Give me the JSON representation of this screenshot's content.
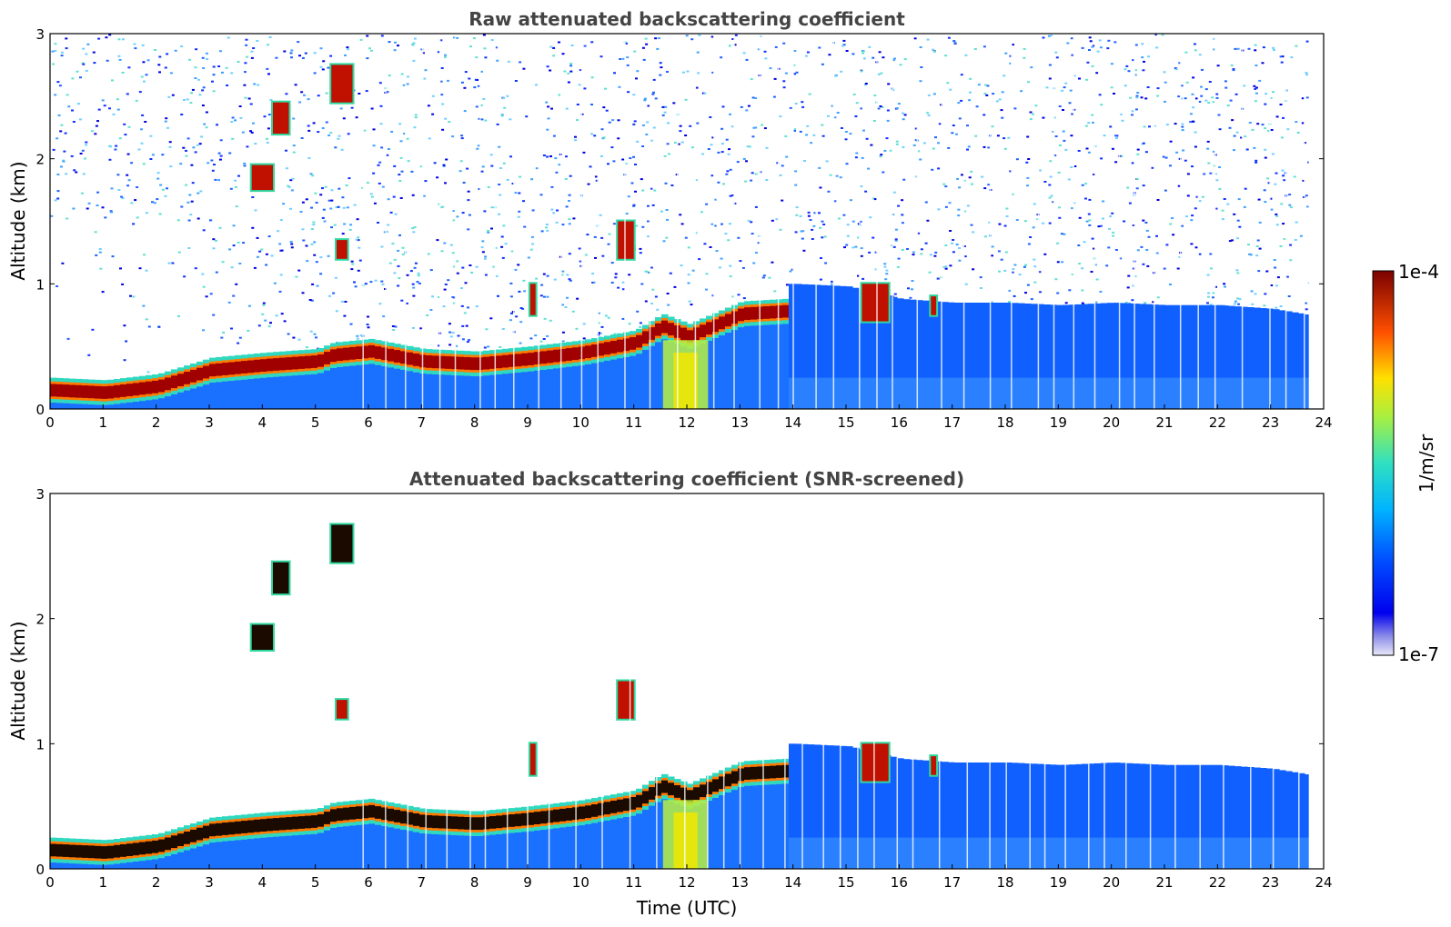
{
  "chart_data": [
    {
      "type": "heatmap",
      "title": "Raw attenuated backscattering coefficient",
      "xlabel": "",
      "ylabel": "Altitude (km)",
      "xlim": [
        0,
        24
      ],
      "ylim": [
        0,
        3
      ],
      "x_ticks": [
        "0",
        "1",
        "2",
        "3",
        "4",
        "5",
        "6",
        "7",
        "8",
        "9",
        "10",
        "11",
        "12",
        "13",
        "14",
        "15",
        "16",
        "17",
        "18",
        "19",
        "20",
        "21",
        "22",
        "23",
        "24"
      ],
      "y_ticks": [
        "0",
        "1",
        "2",
        "3"
      ],
      "screened": false
    },
    {
      "type": "heatmap",
      "title": "Attenuated backscattering coefficient (SNR-screened)",
      "xlabel": "Time (UTC)",
      "ylabel": "Altitude (km)",
      "xlim": [
        0,
        24
      ],
      "ylim": [
        0,
        3
      ],
      "x_ticks": [
        "0",
        "1",
        "2",
        "3",
        "4",
        "5",
        "6",
        "7",
        "8",
        "9",
        "10",
        "11",
        "12",
        "13",
        "14",
        "15",
        "16",
        "17",
        "18",
        "19",
        "20",
        "21",
        "22",
        "23",
        "24"
      ],
      "y_ticks": [
        "0",
        "1",
        "2",
        "3"
      ],
      "screened": true
    }
  ],
  "colorbar": {
    "label": "1/m/sr",
    "max_label": "1e-4",
    "min_label": "1e-7",
    "vmin": 1e-07,
    "vmax": 0.0001,
    "scale": "log"
  },
  "layers": {
    "data_end_time": 23.72,
    "boundary_layer_top_km": [
      [
        0,
        0.17
      ],
      [
        1,
        0.15
      ],
      [
        2,
        0.2
      ],
      [
        3,
        0.33
      ],
      [
        4,
        0.37
      ],
      [
        5,
        0.4
      ],
      [
        5.3,
        0.45
      ],
      [
        6,
        0.48
      ],
      [
        7,
        0.4
      ],
      [
        8,
        0.38
      ],
      [
        9,
        0.42
      ],
      [
        10,
        0.47
      ],
      [
        11,
        0.55
      ],
      [
        11.5,
        0.68
      ],
      [
        12,
        0.6
      ],
      [
        13,
        0.78
      ],
      [
        13.8,
        0.8
      ]
    ],
    "residual_layer_top_km": [
      [
        14,
        1.0
      ],
      [
        15,
        0.98
      ],
      [
        16,
        0.88
      ],
      [
        17,
        0.85
      ],
      [
        18,
        0.85
      ],
      [
        19,
        0.83
      ],
      [
        20,
        0.85
      ],
      [
        21,
        0.83
      ],
      [
        22,
        0.83
      ],
      [
        23,
        0.8
      ],
      [
        23.72,
        0.75
      ]
    ],
    "elevated_features": [
      {
        "t0": 5.3,
        "t1": 5.7,
        "z0": 2.45,
        "z1": 2.75
      },
      {
        "t0": 4.2,
        "t1": 4.5,
        "z0": 2.2,
        "z1": 2.45
      },
      {
        "t0": 3.8,
        "t1": 4.2,
        "z0": 1.75,
        "z1": 1.95
      },
      {
        "t0": 10.7,
        "t1": 11.0,
        "z0": 1.2,
        "z1": 1.5
      },
      {
        "t0": 5.4,
        "t1": 5.6,
        "z0": 1.2,
        "z1": 1.35
      },
      {
        "t0": 9.05,
        "t1": 9.15,
        "z0": 0.75,
        "z1": 1.0
      },
      {
        "t0": 15.3,
        "t1": 15.8,
        "z0": 0.7,
        "z1": 1.0
      },
      {
        "t0": 16.6,
        "t1": 16.7,
        "z0": 0.75,
        "z1": 0.9
      }
    ]
  }
}
